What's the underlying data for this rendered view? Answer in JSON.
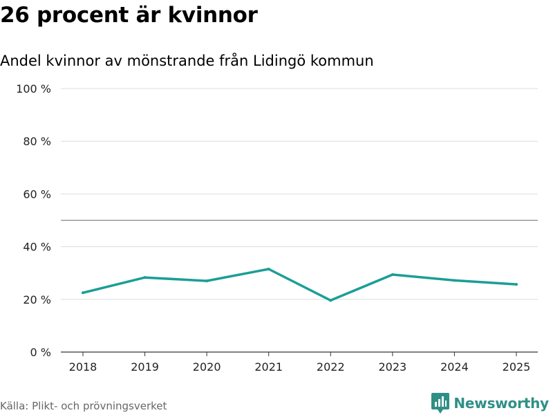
{
  "header": {
    "title": "26 procent är kvinnor",
    "subtitle": "Andel kvinnor av mönstrande från Lidingö kommun"
  },
  "footer": {
    "source": "Källa: Plikt- och prövningsverket",
    "brand": "Newsworthy"
  },
  "colors": {
    "line": "#1a9e96",
    "brand": "#2f8f86",
    "grid": "#dddddd",
    "reference": "#888888"
  },
  "chart_data": {
    "type": "line",
    "title": "26 procent är kvinnor",
    "subtitle": "Andel kvinnor av mönstrande från Lidingö kommun",
    "xlabel": "",
    "ylabel": "",
    "x": [
      "2018",
      "2019",
      "2020",
      "2021",
      "2022",
      "2023",
      "2024",
      "2025"
    ],
    "series": [
      {
        "name": "Andel kvinnor",
        "values": [
          22.5,
          28.3,
          27.0,
          31.5,
          19.6,
          29.4,
          27.2,
          25.7
        ]
      }
    ],
    "ylim": [
      0,
      100
    ],
    "yticks": [
      0,
      20,
      40,
      60,
      80,
      100
    ],
    "ytick_labels": [
      "0 %",
      "20 %",
      "40 %",
      "60 %",
      "80 %",
      "100 %"
    ],
    "reference_line": 50,
    "grid": true
  }
}
